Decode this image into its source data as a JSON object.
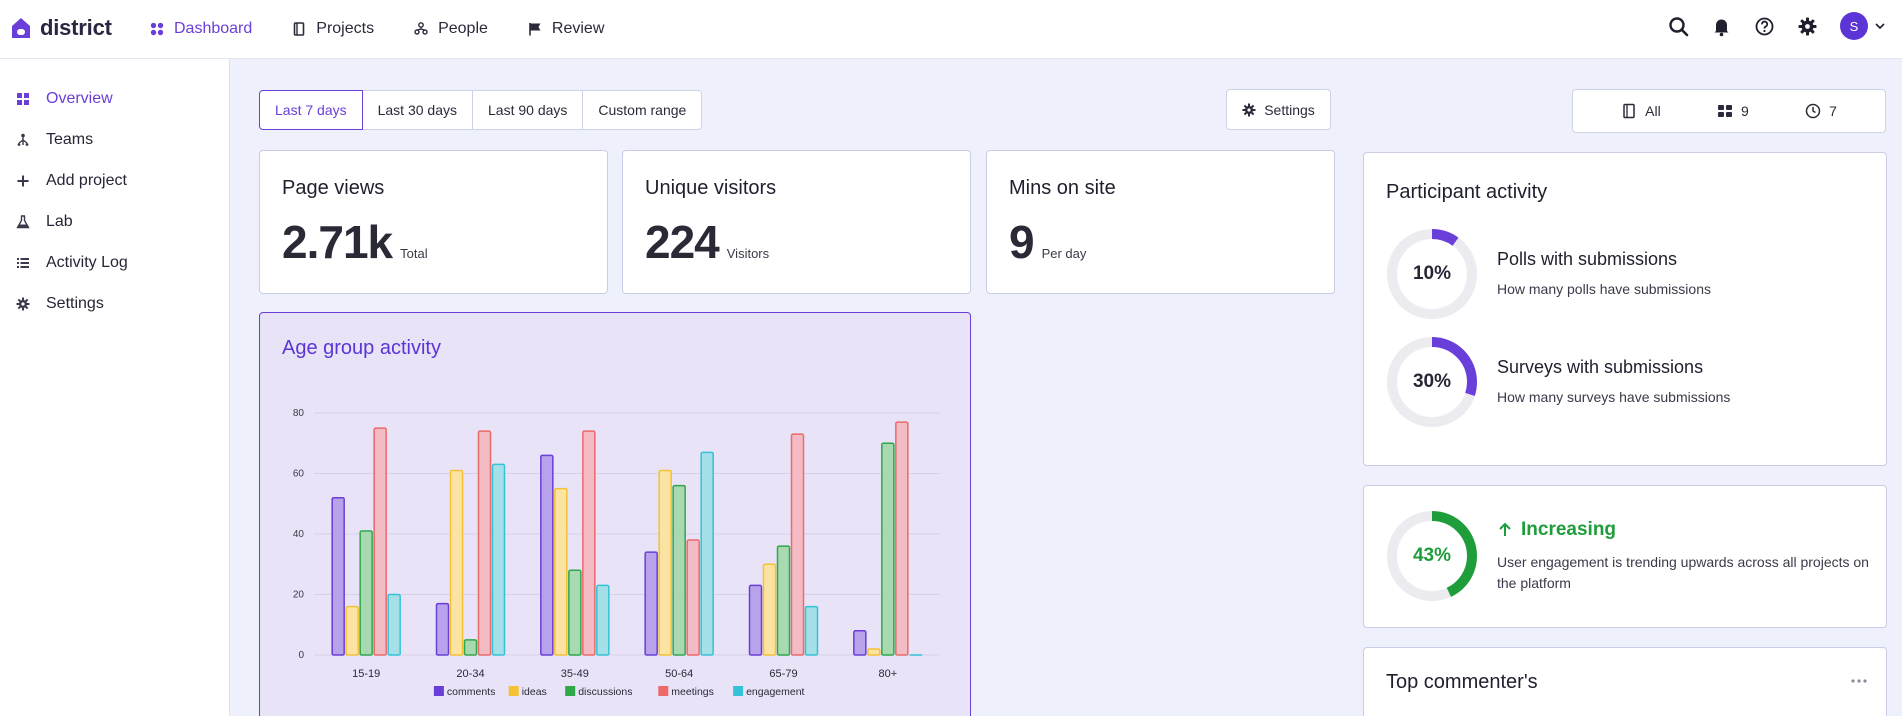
{
  "app": {
    "name": "district"
  },
  "nav": [
    {
      "label": "Dashboard",
      "icon": "dashboard-grid-icon",
      "active": true
    },
    {
      "label": "Projects",
      "icon": "document-icon",
      "active": false
    },
    {
      "label": "People",
      "icon": "people-icon",
      "active": false
    },
    {
      "label": "Review",
      "icon": "flag-icon",
      "active": false
    }
  ],
  "user": {
    "initial": "S"
  },
  "sidebar": {
    "items": [
      {
        "label": "Overview",
        "icon": "grid-icon",
        "active": true
      },
      {
        "label": "Teams",
        "icon": "hierarchy-icon",
        "active": false
      },
      {
        "label": "Add project",
        "icon": "plus-icon",
        "active": false
      },
      {
        "label": "Lab",
        "icon": "flask-icon",
        "active": false
      },
      {
        "label": "Activity Log",
        "icon": "list-icon",
        "active": false
      },
      {
        "label": "Settings",
        "icon": "gear-icon",
        "active": false
      }
    ]
  },
  "range": {
    "options": [
      "Last 7 days",
      "Last 30 days",
      "Last 90 days",
      "Custom range"
    ],
    "selected": "Last 7 days"
  },
  "settings_button": {
    "label": "Settings"
  },
  "filters": [
    {
      "label": "All",
      "icon": "document-icon"
    },
    {
      "label": "9",
      "icon": "grid-icon"
    },
    {
      "label": "7",
      "icon": "clock-icon"
    }
  ],
  "stats": [
    {
      "title": "Page views",
      "value": "2.71k",
      "unit": "Total"
    },
    {
      "title": "Unique visitors",
      "value": "224",
      "unit": "Visitors"
    },
    {
      "title": "Mins on site",
      "value": "9",
      "unit": "Per day"
    }
  ],
  "age_chart": {
    "title": "Age group activity"
  },
  "chart_data": {
    "type": "bar",
    "title": "Age group activity",
    "categories": [
      "15-19",
      "20-34",
      "35-49",
      "50-64",
      "65-79",
      "80+"
    ],
    "ylim": [
      0,
      80
    ],
    "yticks": [
      0,
      20,
      40,
      60,
      80
    ],
    "grid": true,
    "legend": "bottom",
    "series": [
      {
        "name": "comments",
        "color": "#6a3fd9",
        "fill": "#b9a2ec",
        "values": [
          52,
          17,
          66,
          34,
          23,
          8
        ]
      },
      {
        "name": "ideas",
        "color": "#f5c232",
        "fill": "#fbe4a3",
        "values": [
          16,
          61,
          55,
          61,
          30,
          2
        ]
      },
      {
        "name": "discussions",
        "color": "#2fa84a",
        "fill": "#a8d9b1",
        "values": [
          41,
          5,
          28,
          56,
          36,
          70
        ]
      },
      {
        "name": "meetings",
        "color": "#ec6a6a",
        "fill": "#f3bcc4",
        "values": [
          75,
          74,
          74,
          38,
          73,
          77
        ]
      },
      {
        "name": "engagement",
        "color": "#35c2d6",
        "fill": "#a5dfe7",
        "values": [
          20,
          63,
          23,
          67,
          16,
          0
        ]
      }
    ]
  },
  "participant_activity": {
    "title": "Participant activity",
    "items": [
      {
        "percent": 10,
        "percent_label": "10%",
        "heading": "Polls with submissions",
        "subtitle": "How many polls have submissions",
        "color": "#6a3fd9"
      },
      {
        "percent": 30,
        "percent_label": "30%",
        "heading": "Surveys with submissions",
        "subtitle": "How many surveys have submissions",
        "color": "#6a3fd9"
      }
    ]
  },
  "engagement": {
    "percent": 43,
    "percent_label": "43%",
    "trend": "Increasing",
    "color": "#1f9d3a",
    "description": "User engagement is trending upwards across all projects on the platform"
  },
  "top_commenters": {
    "title": "Top commenter's"
  }
}
